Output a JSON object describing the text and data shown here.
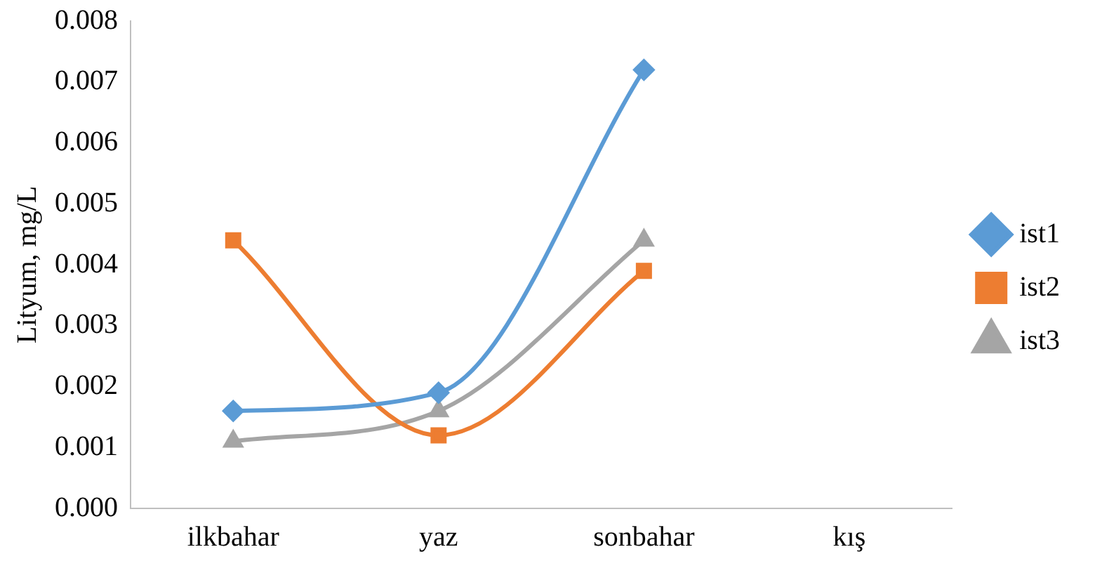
{
  "chart_data": {
    "type": "line",
    "ylabel": "Lityum, mg/L",
    "categories": [
      "ilkbahar",
      "yaz",
      "sonbahar",
      "kış"
    ],
    "series": [
      {
        "name": "ist1",
        "color": "#5b9bd5",
        "marker": "diamond",
        "values": [
          0.0016,
          0.0019,
          0.0072,
          null
        ]
      },
      {
        "name": "ist2",
        "color": "#ed7d31",
        "marker": "square",
        "values": [
          0.0044,
          0.0012,
          0.0039,
          null
        ]
      },
      {
        "name": "ist3",
        "color": "#a5a5a5",
        "marker": "triangle",
        "values": [
          0.0011,
          0.0016,
          0.0044,
          null
        ]
      }
    ],
    "ylim": [
      0,
      0.008
    ],
    "yticks": [
      {
        "value": 0,
        "label": "0.000"
      },
      {
        "value": 0.001,
        "label": "0.001"
      },
      {
        "value": 0.002,
        "label": "0.002"
      },
      {
        "value": 0.003,
        "label": "0.003"
      },
      {
        "value": 0.004,
        "label": "0.004"
      },
      {
        "value": 0.005,
        "label": "0.005"
      },
      {
        "value": 0.006,
        "label": "0.006"
      },
      {
        "value": 0.007,
        "label": "0.007"
      },
      {
        "value": 0.008,
        "label": "0.008"
      }
    ],
    "grid": false,
    "legend": "right",
    "line_style": "solid"
  }
}
